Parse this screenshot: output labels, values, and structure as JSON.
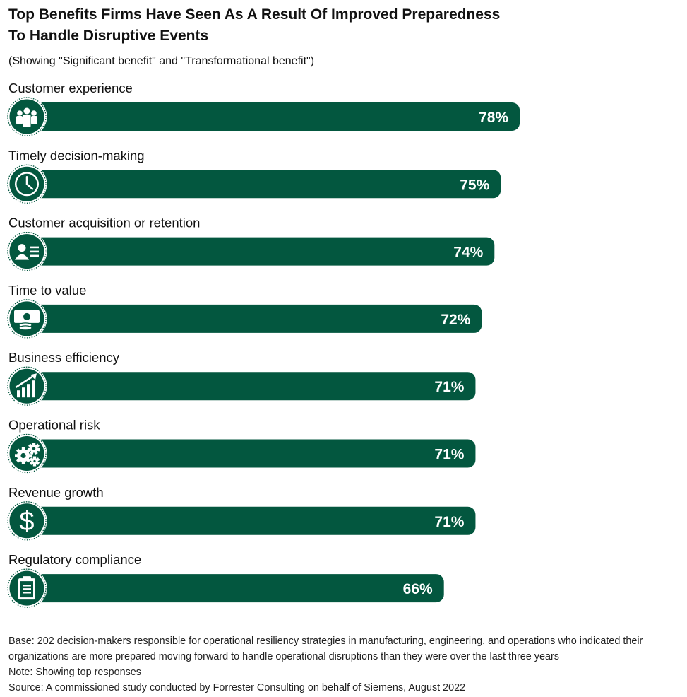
{
  "title_line1": "Top Benefits Firms Have Seen As A Result Of Improved Preparedness",
  "title_line2": "To Handle Disruptive Events",
  "subtitle": "(Showing \"Significant benefit\" and \"Transformational benefit\")",
  "chart_data": {
    "type": "bar",
    "orientation": "horizontal",
    "categories": [
      "Customer experience",
      "Timely decision-making",
      "Customer acquisition or retention",
      "Time to value",
      "Business efficiency",
      "Operational risk",
      "Revenue growth",
      "Regulatory compliance"
    ],
    "values": [
      78,
      75,
      74,
      72,
      71,
      71,
      71,
      66
    ],
    "value_labels": [
      "78%",
      "75%",
      "74%",
      "72%",
      "71%",
      "71%",
      "71%",
      "66%"
    ],
    "icons": [
      "people-group-icon",
      "clock-icon",
      "id-card-icon",
      "money-coins-icon",
      "growth-chart-icon",
      "gears-icon",
      "dollar-sign-icon",
      "clipboard-icon"
    ],
    "unit": "%",
    "bar_color": "#03573f",
    "grid": false,
    "legend": "none"
  },
  "footnotes": {
    "base": "Base: 202 decision-makers responsible for operational resiliency strategies in manufacturing, engineering, and operations who indicated their organizations are more prepared moving forward to handle operational disruptions than they were over the last three years",
    "note": "Note: Showing top responses",
    "source": "Source: A commissioned study conducted by Forrester Consulting on behalf of Siemens, August 2022"
  }
}
